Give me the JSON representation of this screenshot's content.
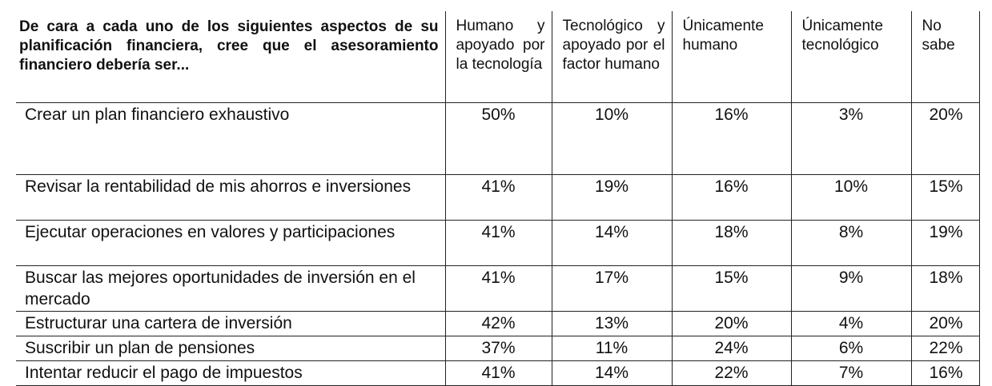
{
  "table": {
    "question": "De cara a cada uno de los siguientes aspectos de su planificación financiera, cree que el asesoramiento financiero debería ser...",
    "columns": [
      "Humano y apoyado por la tecnología",
      "Tecnológico y apoyado por el factor humano",
      "Únicamente humano",
      "Únicamente tecnológico",
      "No sabe"
    ],
    "rows": [
      {
        "label": "Crear un plan financiero exhaustivo",
        "values": [
          "50%",
          "10%",
          "16%",
          "3%",
          "20%"
        ]
      },
      {
        "label": "Revisar la rentabilidad de mis ahorros e inversiones",
        "values": [
          "41%",
          "19%",
          "16%",
          "10%",
          "15%"
        ]
      },
      {
        "label": "Ejecutar operaciones en valores y participaciones",
        "values": [
          "41%",
          "14%",
          "18%",
          "8%",
          "19%"
        ]
      },
      {
        "label": "Buscar las mejores oportunidades de inversión en el mercado",
        "values": [
          "41%",
          "17%",
          "15%",
          "9%",
          "18%"
        ]
      },
      {
        "label": "Estructurar una cartera de inversión",
        "values": [
          "42%",
          "13%",
          "20%",
          "4%",
          "20%"
        ]
      },
      {
        "label": "Suscribir un plan de pensiones",
        "values": [
          "37%",
          "11%",
          "24%",
          "6%",
          "22%"
        ]
      },
      {
        "label": "Intentar reducir el pago de impuestos",
        "values": [
          "41%",
          "14%",
          "22%",
          "7%",
          "16%"
        ]
      }
    ]
  }
}
